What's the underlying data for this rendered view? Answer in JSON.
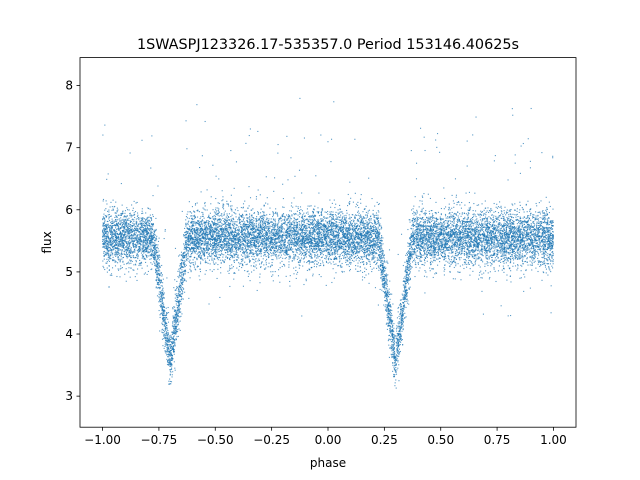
{
  "chart_data": {
    "type": "scatter",
    "title": "1SWASPJ123326.17-535357.0 Period 153146.40625s",
    "xlabel": "phase",
    "ylabel": "flux",
    "xlim": [
      -1.1,
      1.1
    ],
    "ylim": [
      2.5,
      8.45
    ],
    "xticks": [
      -1.0,
      -0.75,
      -0.5,
      -0.25,
      0.0,
      0.25,
      0.5,
      0.75,
      1.0
    ],
    "xtick_labels": [
      "−1.00",
      "−0.75",
      "−0.50",
      "−0.25",
      "0.00",
      "0.25",
      "0.50",
      "0.75",
      "1.00"
    ],
    "yticks": [
      3,
      4,
      5,
      6,
      7,
      8
    ],
    "ytick_labels": [
      "3",
      "4",
      "5",
      "6",
      "7",
      "8"
    ],
    "grid": false,
    "marker_color": "#1f77b4",
    "series": [
      {
        "baseline_flux": 5.55,
        "primary_eclipse": {
          "phases": [
            -0.7,
            0.3
          ],
          "min_flux": 3.55,
          "half_width_phase": 0.075
        },
        "scatter_std": 0.22,
        "phase_range": [
          -1.0,
          1.0
        ],
        "point_count": 14000
      }
    ]
  }
}
